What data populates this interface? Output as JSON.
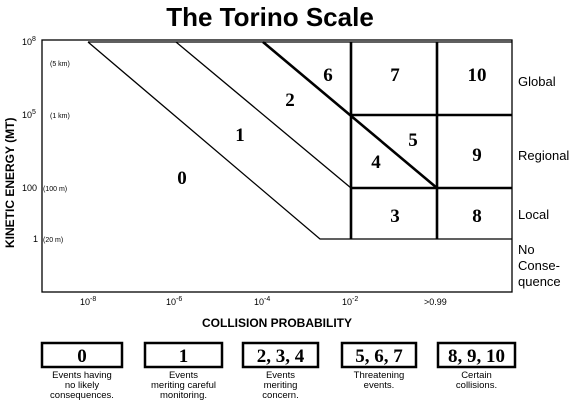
{
  "title": "The Torino Scale",
  "y_axis": {
    "label": "KINETIC ENERGY (MT)",
    "ticks": [
      {
        "base": "10",
        "exp": "8",
        "size": "(5 km)"
      },
      {
        "base": "10",
        "exp": "5",
        "size": "(1 km)"
      },
      {
        "base": "100",
        "size": "(100 m)"
      },
      {
        "base": "1",
        "size": "(20 m)"
      }
    ]
  },
  "x_axis": {
    "label": "COLLISION PROBABILITY",
    "ticks": [
      {
        "base": "10",
        "exp": "-8"
      },
      {
        "base": "10",
        "exp": "-6"
      },
      {
        "base": "10",
        "exp": "-4"
      },
      {
        "base": "10",
        "exp": "-2"
      },
      {
        "base": ">0.99"
      }
    ]
  },
  "regions": [
    "0",
    "1",
    "2",
    "3",
    "4",
    "5",
    "6",
    "7",
    "8",
    "9",
    "10"
  ],
  "zones": [
    "Global",
    "Regional",
    "Local",
    [
      "No",
      "Conse-",
      "quence"
    ]
  ],
  "legend": [
    {
      "levels": "0",
      "text": [
        "Events having",
        "no likely",
        "consequences."
      ]
    },
    {
      "levels": "1",
      "text": [
        "Events",
        "meriting careful",
        "monitoring."
      ]
    },
    {
      "levels": "2, 3, 4",
      "text": [
        "Events",
        "meriting",
        "concern."
      ]
    },
    {
      "levels": "5, 6, 7",
      "text": [
        "Threatening",
        "events."
      ]
    },
    {
      "levels": "8, 9, 10",
      "text": [
        "Certain",
        "collisions."
      ]
    }
  ]
}
